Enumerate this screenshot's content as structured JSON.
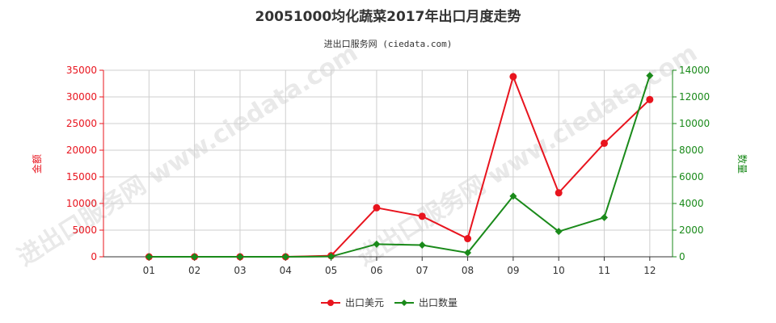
{
  "chart_data": {
    "type": "line",
    "title": "20051000均化蔬菜2017年出口月度走势",
    "subtitle": "进出口服务网 (ciedata.com)",
    "watermark": "进出口服务网 www.ciedata.com",
    "categories": [
      "01",
      "02",
      "03",
      "04",
      "05",
      "06",
      "07",
      "08",
      "09",
      "10",
      "11",
      "12"
    ],
    "y_left": {
      "label": "金额",
      "min": 0,
      "max": 35000,
      "ticks": [
        "0",
        "5000",
        "10000",
        "15000",
        "20000",
        "25000",
        "30000",
        "35000"
      ],
      "color": "#e8141e"
    },
    "y_right": {
      "label": "数量",
      "min": 0,
      "max": 14000,
      "ticks": [
        "0",
        "2000",
        "4000",
        "6000",
        "8000",
        "10000",
        "12000",
        "14000"
      ],
      "color": "#1a8a1a"
    },
    "grid": true,
    "legend_position": "bottom",
    "series": [
      {
        "name": "出口美元",
        "axis": "left",
        "color": "#e8141e",
        "marker": "circle",
        "values": [
          0,
          0,
          0,
          0,
          200,
          9200,
          7600,
          3400,
          33800,
          12000,
          21300,
          29500
        ]
      },
      {
        "name": "出口数量",
        "axis": "right",
        "color": "#1a8a1a",
        "marker": "diamond",
        "values": [
          0,
          0,
          0,
          0,
          20,
          950,
          880,
          300,
          4550,
          1900,
          2950,
          13600
        ]
      }
    ]
  }
}
